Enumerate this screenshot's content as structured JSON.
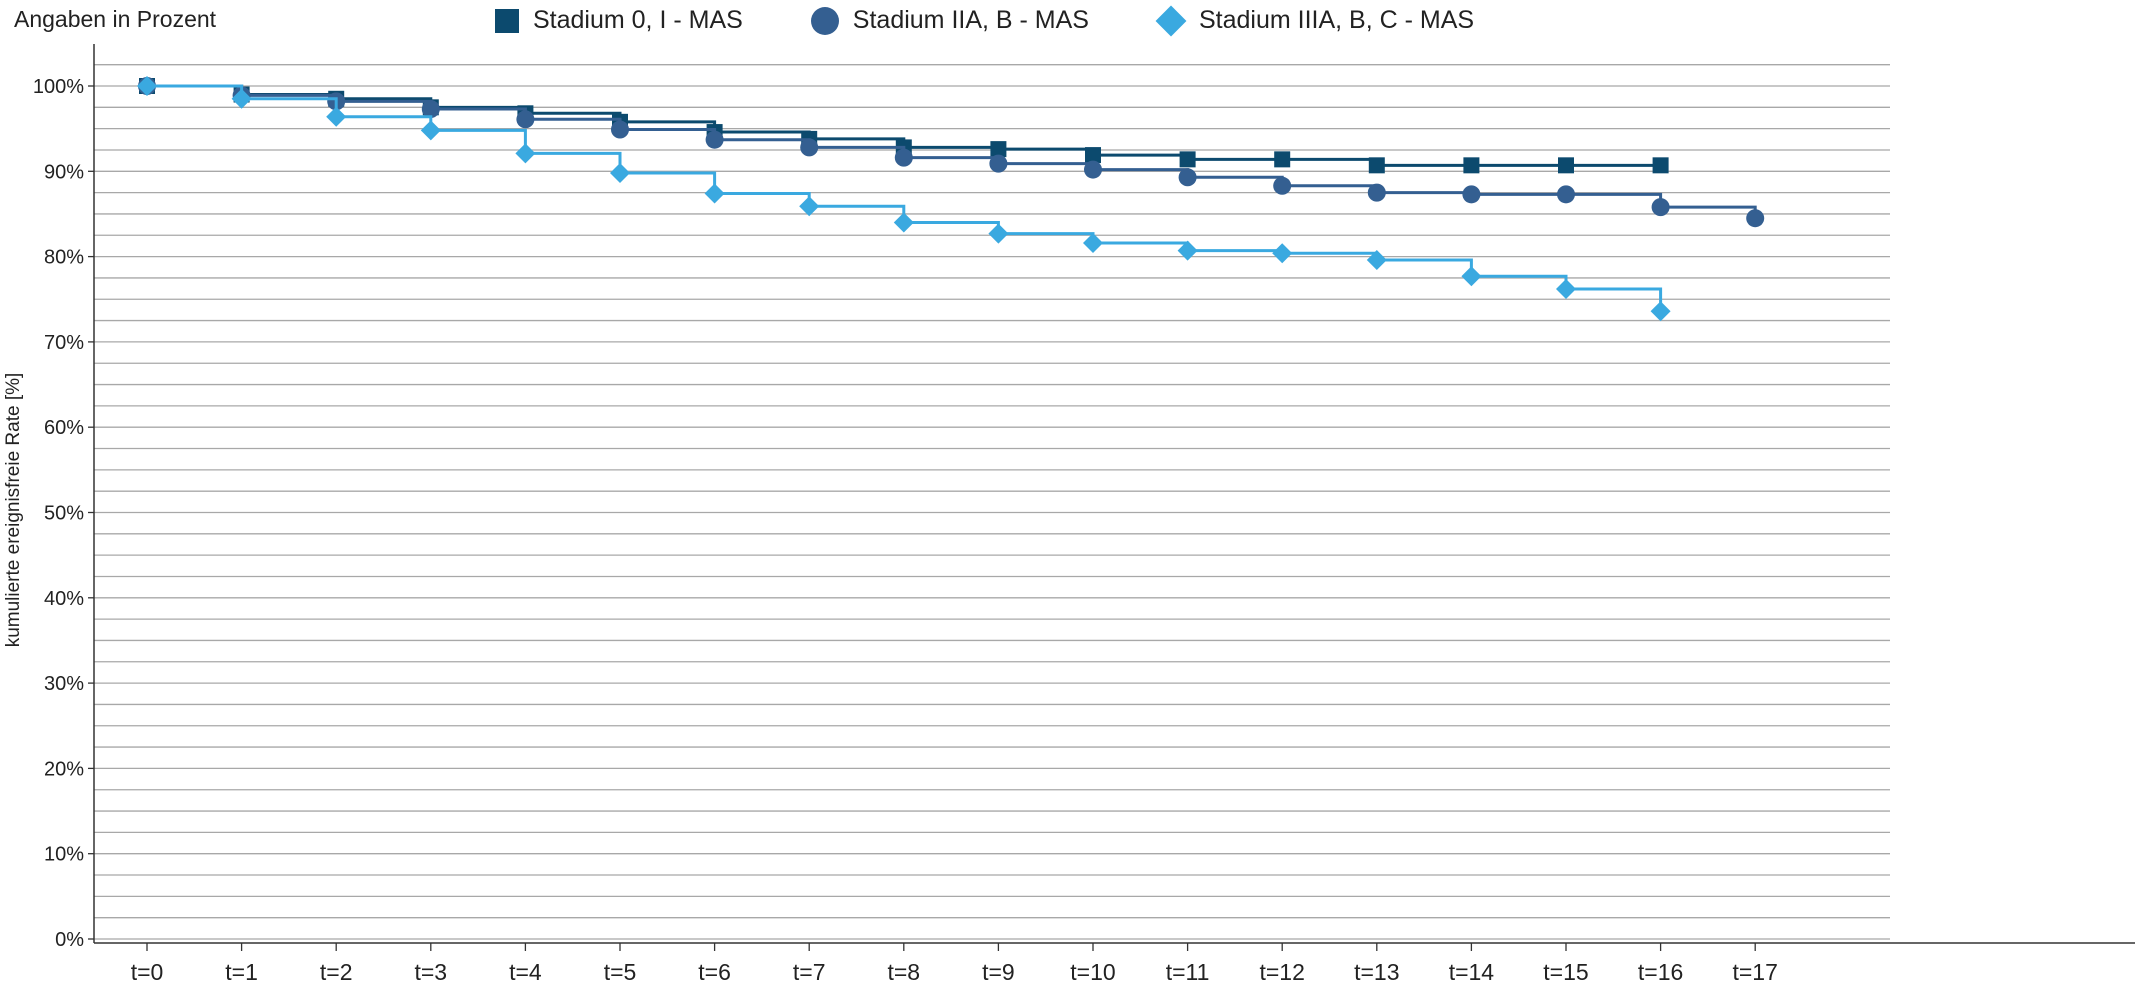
{
  "note": "Angaben in Prozent",
  "chart_data": {
    "type": "line",
    "step": true,
    "ylabel": "kumulierte ereignisfreie Rate [%]",
    "xlabel": "",
    "ylim": [
      0,
      100
    ],
    "yticks": [
      "0%",
      "10%",
      "20%",
      "30%",
      "40%",
      "50%",
      "60%",
      "70%",
      "80%",
      "90%",
      "100%"
    ],
    "categories": [
      "t=0",
      "t=1",
      "t=2",
      "t=3",
      "t=4",
      "t=5",
      "t=6",
      "t=7",
      "t=8",
      "t=9",
      "t=10",
      "t=11",
      "t=12",
      "t=13",
      "t=14",
      "t=15",
      "t=16",
      "t=17"
    ],
    "grid": true,
    "legend_position": "top",
    "series": [
      {
        "name": "Stadium 0, I - MAS",
        "marker": "square",
        "color": "#0c4a6e",
        "values": [
          100,
          99.0,
          98.5,
          97.5,
          96.8,
          95.8,
          94.6,
          93.8,
          92.8,
          92.6,
          91.9,
          91.4,
          91.4,
          90.7,
          90.7,
          90.7,
          90.7,
          null
        ]
      },
      {
        "name": "Stadium IIA, B - MAS",
        "marker": "circle",
        "color": "#345f91",
        "values": [
          100,
          98.9,
          98.2,
          97.3,
          96.1,
          94.9,
          93.7,
          92.8,
          91.6,
          90.9,
          90.2,
          89.3,
          88.3,
          87.5,
          87.3,
          87.3,
          85.8,
          84.5
        ]
      },
      {
        "name": "Stadium IIIA, B, C - MAS",
        "marker": "diamond",
        "color": "#3aa9e0",
        "values": [
          100,
          98.5,
          96.4,
          94.8,
          92.1,
          89.8,
          87.4,
          85.9,
          84.0,
          82.7,
          81.6,
          80.7,
          80.4,
          79.6,
          77.7,
          76.2,
          73.6,
          null
        ]
      }
    ]
  }
}
